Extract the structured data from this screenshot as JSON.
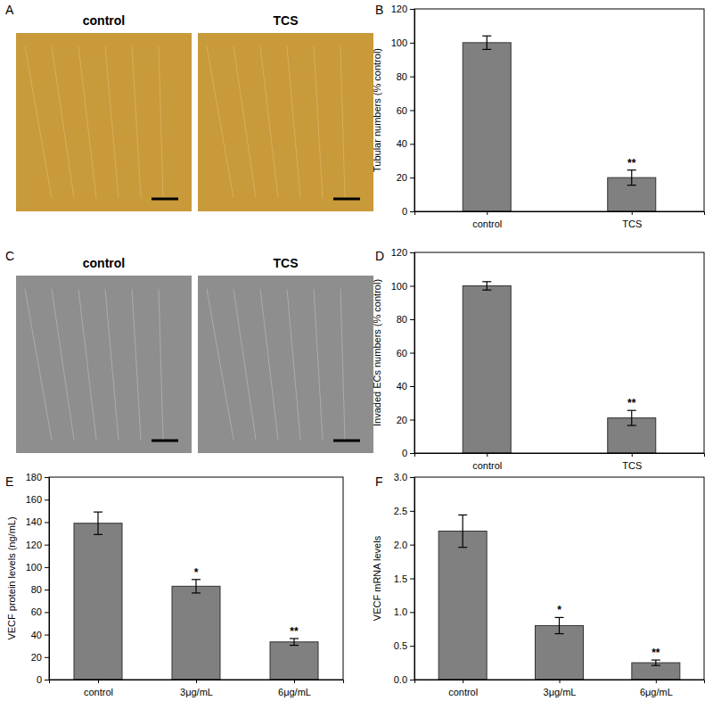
{
  "chart_data": [
    {
      "type": "bar",
      "label": "B",
      "y_label": "Tubular numbers (% control)",
      "categories": [
        "control",
        "TCS"
      ],
      "values": [
        100,
        20
      ],
      "errors": [
        4,
        4.5
      ],
      "color": "#808080",
      "ylim": [
        0,
        120
      ],
      "yticks": [
        0,
        20,
        40,
        60,
        80,
        100,
        120
      ],
      "annotations": [
        {
          "x": "TCS",
          "text": "**"
        }
      ]
    },
    {
      "type": "bar",
      "label": "D",
      "y_label": "Invaded ECs numbers (% control)",
      "categories": [
        "control",
        "TCS"
      ],
      "values": [
        100,
        21
      ],
      "errors": [
        2.5,
        4.5
      ],
      "color": "#808080",
      "ylim": [
        0,
        120
      ],
      "yticks": [
        0,
        20,
        40,
        60,
        80,
        100,
        120
      ],
      "annotations": [
        {
          "x": "TCS",
          "text": "**"
        }
      ]
    },
    {
      "type": "bar",
      "label": "E",
      "y_label": "VECF protein levels (ng/mL)",
      "categories": [
        "control",
        "3μg/mL",
        "6μg/mL"
      ],
      "values": [
        139,
        83,
        33.5
      ],
      "errors": [
        10,
        6,
        3
      ],
      "color": "#808080",
      "ylim": [
        0,
        180
      ],
      "yticks": [
        0,
        20,
        40,
        60,
        80,
        100,
        120,
        140,
        160,
        180
      ],
      "annotations": [
        {
          "x": "3μg/mL",
          "text": "*"
        },
        {
          "x": "6μg/mL",
          "text": "**"
        }
      ]
    },
    {
      "type": "bar",
      "label": "F",
      "y_label": "VECF mRNA levels",
      "categories": [
        "control",
        "3μg/mL",
        "6μg/mL"
      ],
      "values": [
        2.2,
        0.8,
        0.25
      ],
      "errors": [
        0.24,
        0.12,
        0.04
      ],
      "color": "#808080",
      "ylim": [
        0,
        3.0
      ],
      "yticks": [
        {
          "value": 0,
          "label": "0.0"
        },
        0.5,
        {
          "value": 1,
          "label": "1.0"
        },
        1.5,
        {
          "value": 2,
          "label": "2.0"
        },
        2.5,
        {
          "value": 3,
          "label": "3.0"
        }
      ],
      "annotations": [
        {
          "x": "3μg/mL",
          "text": "*"
        },
        {
          "x": "6μg/mL",
          "text": "**"
        }
      ]
    }
  ],
  "images": [
    {
      "label": "A",
      "titles": [
        "control",
        "TCS"
      ]
    },
    {
      "label": "C",
      "titles": [
        "control",
        "TCS"
      ]
    }
  ]
}
